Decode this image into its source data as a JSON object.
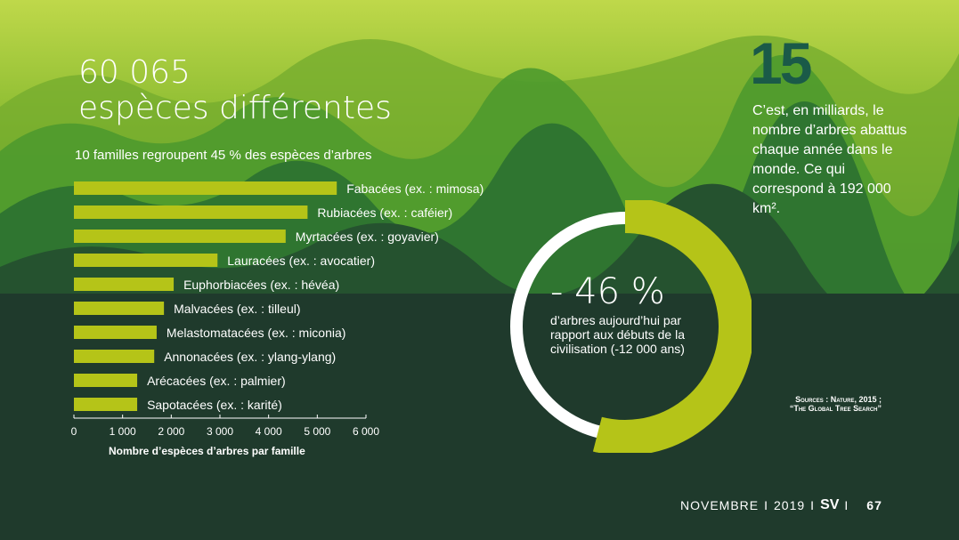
{
  "colors": {
    "accent": "#b5c418",
    "dark_bg": "#1f3a2c",
    "number": "#1a5a48",
    "ring_white": "#ffffff"
  },
  "headline": {
    "line1": "60 065",
    "line2": "espèces différentes"
  },
  "chart_data": {
    "type": "bar",
    "orientation": "horizontal",
    "title": "10 familles regroupent 45 % des espèces d’arbres",
    "xlabel": "Nombre d’espèces d’arbres par famille",
    "ylabel": "",
    "xlim": [
      0,
      6000
    ],
    "x_ticks": [
      0,
      1000,
      2000,
      3000,
      4000,
      5000,
      6000
    ],
    "x_tick_labels": [
      "0",
      "1 000",
      "2 000",
      "3 000",
      "4 000",
      "5 000",
      "6 000"
    ],
    "categories": [
      "Fabacées (ex. : mimosa)",
      "Rubiacées (ex. : caféier)",
      "Myrtacées (ex. : goyavier)",
      "Lauracées (ex. : avocatier)",
      "Euphorbiacées (ex. : hévéa)",
      "Malvacées (ex. : tilleul)",
      "Melastomatacées (ex. : miconia)",
      "Annonacées (ex. : ylang-ylang)",
      "Arécacées (ex. : palmier)",
      "Sapotacées (ex. : karité)"
    ],
    "values": [
      5400,
      4800,
      4350,
      2950,
      2050,
      1850,
      1700,
      1650,
      1300,
      1300
    ]
  },
  "stat": {
    "number": "15",
    "text": "C’est, en milliards, le nombre d’arbres abattus chaque année dans le monde. Ce qui correspond à 192 000 km²."
  },
  "donut": {
    "value": "- 46 %",
    "fraction": 0.46,
    "caption": "d’arbres aujourd’hui par rapport aux débuts de la civilisation (-12 000 ans)"
  },
  "sources": {
    "text": "Sources : Nature, 2015 ; “The Global Tree Search”"
  },
  "footer": {
    "month": "NOVEMBRE",
    "sep1": "I",
    "year": "2019",
    "sep2": "I",
    "magazine": "SV",
    "sep3": "I",
    "page": "67"
  }
}
